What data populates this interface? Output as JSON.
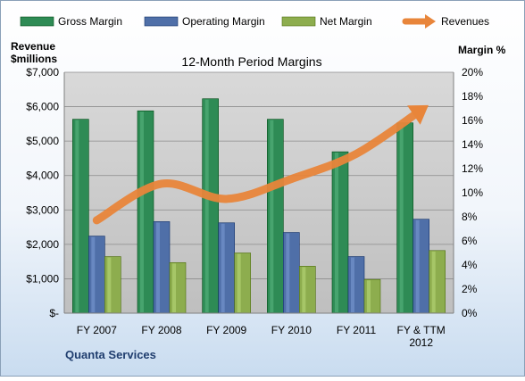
{
  "chart_data": {
    "type": "bar",
    "title": "12-Month Period Margins",
    "left_axis_title_line1": "Revenue",
    "left_axis_title_line2": "$millions",
    "right_axis_title": "Margin %",
    "footer_label": "Quanta Services",
    "categories": [
      "FY 2007",
      "FY 2008",
      "FY 2009",
      "FY 2010",
      "FY 2011",
      "FY & TTM 2012"
    ],
    "category_lines": [
      [
        "FY 2007"
      ],
      [
        "FY 2008"
      ],
      [
        "FY 2009"
      ],
      [
        "FY 2010"
      ],
      [
        "FY 2011"
      ],
      [
        "FY & TTM",
        "2012"
      ]
    ],
    "y_left_ticks": [
      "$-",
      "$1,000",
      "$2,000",
      "$3,000",
      "$4,000",
      "$5,000",
      "$6,000",
      "$7,000"
    ],
    "y_left_range": [
      0,
      7000
    ],
    "y_right_ticks": [
      "0%",
      "2%",
      "4%",
      "6%",
      "8%",
      "10%",
      "12%",
      "14%",
      "16%",
      "18%",
      "20%"
    ],
    "y_right_range": [
      0,
      20
    ],
    "legend_position": "top",
    "grid": true,
    "series": [
      {
        "name": "Gross Margin",
        "kind": "bar",
        "axis": "right",
        "unit": "%",
        "color": "#2e8b55",
        "values": [
          16.1,
          16.8,
          17.8,
          16.1,
          13.4,
          15.8
        ]
      },
      {
        "name": "Operating Margin",
        "kind": "bar",
        "axis": "right",
        "unit": "%",
        "color": "#4f6fa8",
        "values": [
          6.4,
          7.6,
          7.5,
          6.7,
          4.7,
          7.8
        ]
      },
      {
        "name": "Net Margin",
        "kind": "bar",
        "axis": "right",
        "unit": "%",
        "color": "#8dad4e",
        "values": [
          4.7,
          4.2,
          5.0,
          3.9,
          2.8,
          5.2
        ]
      },
      {
        "name": "Revenues",
        "kind": "line",
        "axis": "left",
        "unit": "$millions",
        "color": "#e8853a",
        "values": [
          2700,
          3760,
          3320,
          3900,
          4630,
          5900
        ]
      }
    ]
  }
}
